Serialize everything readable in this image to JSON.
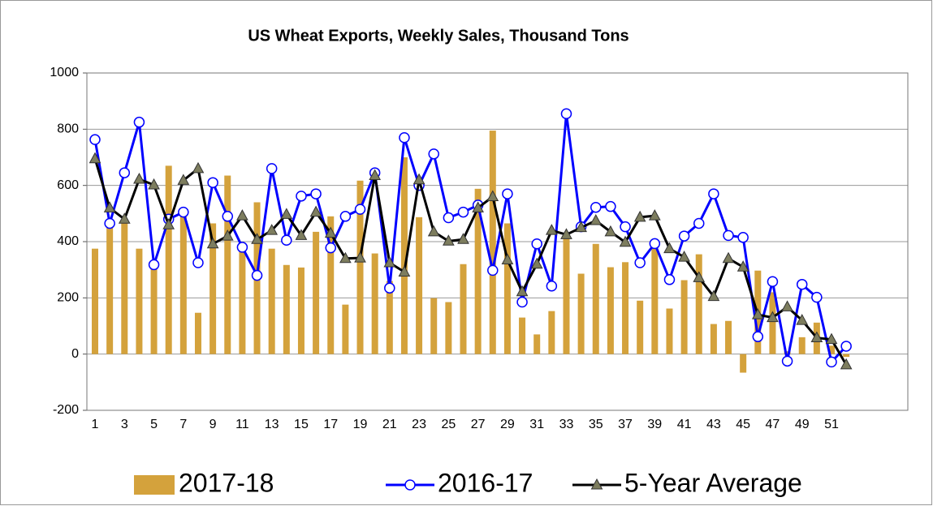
{
  "chart_data": {
    "type": "bar-line",
    "title": "US Wheat Exports, Weekly Sales, Thousand Tons",
    "categories": [
      "1",
      null,
      "3",
      null,
      "5",
      null,
      "7",
      null,
      "9",
      null,
      "11",
      null,
      "13",
      null,
      "15",
      null,
      "17",
      null,
      "19",
      null,
      "21",
      null,
      "23",
      null,
      "25",
      null,
      "27",
      null,
      "29",
      null,
      "31",
      null,
      "33",
      null,
      "35",
      null,
      "37",
      null,
      "39",
      null,
      "41",
      null,
      "43",
      null,
      "45",
      null,
      "47",
      null,
      "49",
      null,
      "51",
      null
    ],
    "series": [
      {
        "name": "2017-18",
        "kind": "bar",
        "color": "#d4a23c",
        "values": [
          375,
          450,
          480,
          375,
          310,
          670,
          490,
          147,
          465,
          635,
          380,
          540,
          375,
          317,
          308,
          435,
          490,
          176,
          617,
          358,
          260,
          700,
          487,
          199,
          185,
          320,
          588,
          795,
          465,
          130,
          70,
          153,
          410,
          286,
          392,
          309,
          327,
          190,
          380,
          162,
          263,
          355,
          107,
          118,
          -66,
          297,
          220,
          10,
          60,
          112,
          30,
          -10
        ]
      },
      {
        "name": "2016-17",
        "kind": "line",
        "marker": "circle",
        "color": "#0000ff",
        "values": [
          763,
          465,
          645,
          825,
          318,
          480,
          505,
          325,
          610,
          490,
          380,
          280,
          660,
          405,
          562,
          570,
          378,
          490,
          515,
          645,
          235,
          770,
          600,
          712,
          485,
          505,
          530,
          298,
          570,
          185,
          392,
          242,
          855,
          453,
          522,
          525,
          453,
          325,
          393,
          265,
          420,
          465,
          570,
          422,
          415,
          62,
          258,
          -25,
          248,
          202,
          -28,
          28
        ]
      },
      {
        "name": "5-Year Average",
        "kind": "line",
        "marker": "triangle",
        "color": "#000000",
        "values": [
          695,
          520,
          480,
          622,
          602,
          460,
          618,
          660,
          392,
          420,
          492,
          408,
          440,
          497,
          422,
          505,
          430,
          340,
          342,
          635,
          325,
          292,
          620,
          435,
          402,
          408,
          520,
          560,
          335,
          222,
          320,
          440,
          425,
          450,
          475,
          435,
          398,
          487,
          492,
          375,
          345,
          272,
          205,
          340,
          310,
          140,
          130,
          168,
          120,
          58,
          52,
          -38
        ]
      }
    ],
    "ylim": [
      -200,
      1000
    ],
    "yticks": [
      -200,
      0,
      200,
      400,
      600,
      800,
      1000
    ],
    "grid": true,
    "legend": "bottom"
  }
}
